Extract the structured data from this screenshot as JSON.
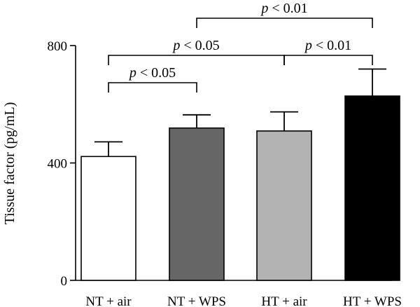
{
  "chart_data": {
    "type": "bar",
    "title": "",
    "xlabel": "",
    "ylabel": "Tissue factor (pg/mL)",
    "ylim": [
      0,
      800
    ],
    "yticks": [
      0,
      400,
      800
    ],
    "grid": false,
    "categories": [
      "NT + air",
      "NT + WPS",
      "HT + air",
      "HT + WPS"
    ],
    "values": [
      422,
      519,
      509,
      628
    ],
    "errors": [
      50,
      45,
      65,
      92
    ],
    "colors": [
      "#ffffff",
      "#666666",
      "#b3b3b3",
      "#000000"
    ],
    "significance": [
      {
        "from": 0,
        "to": 1,
        "p_symbol": "p",
        "p_text": " < 0.05",
        "level": 1
      },
      {
        "from": 0,
        "to": 2,
        "p_symbol": "p",
        "p_text": " < 0.05",
        "level": 2
      },
      {
        "from": 2,
        "to": 3,
        "p_symbol": "p",
        "p_text": " < 0.01",
        "level": 2
      },
      {
        "from": 1,
        "to": 3,
        "p_symbol": "p",
        "p_text": " < 0.01",
        "level": 3
      }
    ]
  }
}
